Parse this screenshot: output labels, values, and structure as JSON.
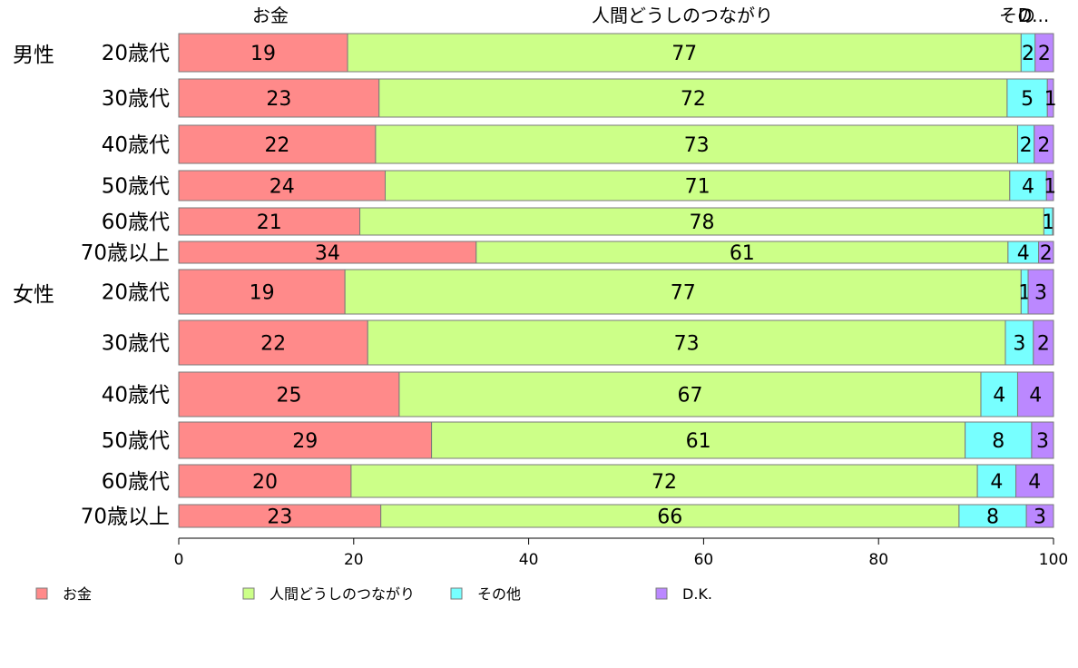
{
  "chart_data": {
    "type": "bar",
    "orientation": "horizontal",
    "stacked": true,
    "title": "",
    "xlabel": "",
    "ylabel": "",
    "xlim": [
      0,
      100
    ],
    "x_ticks": [
      "0",
      "20",
      "40",
      "60",
      "80",
      "100"
    ],
    "grid": false,
    "legend_position": "bottom",
    "series_header_labels": [
      "お金",
      "人間どうしのつながり",
      "その",
      "D..."
    ],
    "groups": [
      {
        "label": "男性",
        "rows": [
          0,
          1,
          2,
          3,
          4,
          5
        ]
      },
      {
        "label": "女性",
        "rows": [
          6,
          7,
          8,
          9,
          10,
          11
        ]
      }
    ],
    "categories": [
      "20歳代",
      "30歳代",
      "40歳代",
      "50歳代",
      "60歳代",
      "70歳以上",
      "20歳代",
      "30歳代",
      "40歳代",
      "50歳代",
      "60歳代",
      "70歳以上"
    ],
    "series": [
      {
        "name": "お金",
        "color": "#ff8a8a",
        "values": [
          19,
          23,
          22,
          24,
          21,
          34,
          19,
          22,
          25,
          29,
          20,
          23
        ],
        "drawn": [
          19.3,
          22.9,
          22.5,
          23.6,
          20.7,
          34.0,
          19.0,
          21.6,
          25.2,
          28.9,
          19.7,
          23.1
        ]
      },
      {
        "name": "人間どうしのつながり",
        "color": "#ccff88",
        "values": [
          77,
          72,
          73,
          71,
          78,
          61,
          77,
          73,
          67,
          61,
          72,
          66
        ],
        "drawn": [
          77.0,
          71.8,
          73.4,
          71.4,
          78.2,
          60.8,
          77.3,
          72.9,
          66.5,
          61.0,
          71.6,
          66.1
        ]
      },
      {
        "name": "その他",
        "color": "#77ffff",
        "values": [
          2,
          5,
          2,
          4,
          1,
          4,
          1,
          3,
          4,
          8,
          4,
          8
        ],
        "drawn": [
          1.6,
          4.6,
          1.9,
          4.2,
          1.0,
          3.5,
          0.8,
          3.2,
          4.2,
          7.6,
          4.4,
          7.7
        ]
      },
      {
        "name": "D.K.",
        "color": "#bb88ff",
        "values": [
          2,
          1,
          2,
          1,
          0,
          2,
          3,
          2,
          4,
          3,
          4,
          3
        ],
        "drawn": [
          2.1,
          0.7,
          2.2,
          0.8,
          0.1,
          1.7,
          2.9,
          2.3,
          4.1,
          2.5,
          4.3,
          3.1
        ]
      }
    ]
  }
}
